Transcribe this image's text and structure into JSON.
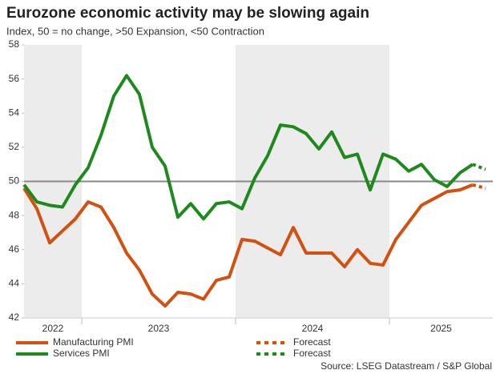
{
  "chart_data": {
    "type": "line",
    "title": "Eurozone economic activity may be slowing again",
    "subtitle": "Index, 50 = no change, >50 Expansion, <50 Contraction",
    "source": "Source: LSEG Datastream / S&P Global",
    "x_labels": [
      "2022",
      "2023",
      "2024",
      "2025"
    ],
    "shaded": [
      true,
      false,
      true,
      false
    ],
    "reference_line": 50,
    "ylim": [
      42,
      58
    ],
    "yticks": [
      42,
      44,
      46,
      48,
      50,
      52,
      54,
      56,
      58
    ],
    "series": [
      {
        "name": "Manufacturing PMI",
        "color": "#d4500f",
        "dashed": false,
        "values": [
          49.6,
          48.4,
          46.4,
          47.1,
          47.8,
          48.8,
          48.5,
          47.3,
          45.8,
          44.8,
          43.4,
          42.7,
          43.5,
          43.4,
          43.1,
          44.2,
          44.4,
          46.6,
          46.5,
          46.1,
          45.7,
          47.3,
          45.8,
          45.8,
          45.8,
          45.0,
          46.0,
          45.2,
          45.1,
          46.6,
          47.6,
          48.6,
          49.0,
          49.4,
          49.5,
          49.8,
          null
        ]
      },
      {
        "name": "Services PMI",
        "color": "#1e8a1e",
        "dashed": false,
        "values": [
          49.8,
          48.8,
          48.6,
          48.5,
          49.8,
          50.8,
          52.7,
          55.0,
          56.2,
          55.1,
          52.0,
          50.9,
          47.9,
          48.7,
          47.8,
          48.7,
          48.8,
          48.4,
          50.2,
          51.5,
          53.3,
          53.2,
          52.8,
          51.9,
          52.9,
          51.4,
          51.6,
          49.5,
          51.6,
          51.3,
          50.6,
          51.0,
          50.1,
          49.7,
          50.5,
          51.0,
          null
        ]
      },
      {
        "name": "Forecast",
        "color": "#d4500f",
        "dashed": true,
        "values": [
          null,
          null,
          null,
          null,
          null,
          null,
          null,
          null,
          null,
          null,
          null,
          null,
          null,
          null,
          null,
          null,
          null,
          null,
          null,
          null,
          null,
          null,
          null,
          null,
          null,
          null,
          null,
          null,
          null,
          null,
          null,
          null,
          null,
          null,
          null,
          49.8,
          49.6
        ]
      },
      {
        "name": "Forecast",
        "color": "#1e8a1e",
        "dashed": true,
        "values": [
          null,
          null,
          null,
          null,
          null,
          null,
          null,
          null,
          null,
          null,
          null,
          null,
          null,
          null,
          null,
          null,
          null,
          null,
          null,
          null,
          null,
          null,
          null,
          null,
          null,
          null,
          null,
          null,
          null,
          null,
          null,
          null,
          null,
          null,
          null,
          51.0,
          50.7
        ]
      }
    ]
  }
}
